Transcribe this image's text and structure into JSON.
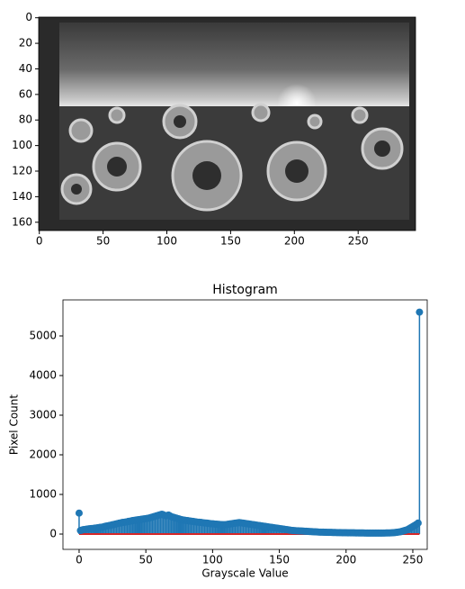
{
  "chart_data": [
    {
      "type": "image",
      "xlim": [
        -0.5,
        295
      ],
      "ylim": [
        166.5,
        -0.5
      ],
      "xticks": [
        0,
        50,
        100,
        150,
        200,
        250
      ],
      "yticks": [
        0,
        20,
        40,
        60,
        80,
        100,
        120,
        140,
        160
      ]
    },
    {
      "type": "stem",
      "title": "Histogram",
      "x_label": "Grayscale Value",
      "y_label": "Pixel Count",
      "color": "#1f77b4",
      "baseline_color": "#d62728",
      "xlim": [
        -12.1,
        260.8
      ],
      "ylim": [
        -386,
        5909
      ],
      "xticks": [
        0,
        50,
        100,
        150,
        200,
        250
      ],
      "yticks": [
        0,
        1000,
        2000,
        3000,
        4000,
        5000
      ],
      "x": [
        0,
        1,
        2,
        3,
        4,
        5,
        6,
        7,
        8,
        9,
        10,
        11,
        12,
        13,
        14,
        15,
        16,
        17,
        18,
        19,
        20,
        21,
        22,
        23,
        24,
        25,
        26,
        27,
        28,
        29,
        30,
        31,
        32,
        33,
        34,
        35,
        36,
        37,
        38,
        39,
        40,
        41,
        42,
        43,
        44,
        45,
        46,
        47,
        48,
        49,
        50,
        51,
        52,
        53,
        54,
        55,
        56,
        57,
        58,
        59,
        60,
        61,
        62,
        63,
        64,
        65,
        66,
        67,
        68,
        69,
        70,
        71,
        72,
        73,
        74,
        75,
        76,
        77,
        78,
        79,
        80,
        81,
        82,
        83,
        84,
        85,
        86,
        87,
        88,
        89,
        90,
        91,
        92,
        93,
        94,
        95,
        96,
        97,
        98,
        99,
        100,
        101,
        102,
        103,
        104,
        105,
        106,
        107,
        108,
        109,
        110,
        111,
        112,
        113,
        114,
        115,
        116,
        117,
        118,
        119,
        120,
        121,
        122,
        123,
        124,
        125,
        126,
        127,
        128,
        129,
        130,
        131,
        132,
        133,
        134,
        135,
        136,
        137,
        138,
        139,
        140,
        141,
        142,
        143,
        144,
        145,
        146,
        147,
        148,
        149,
        150,
        151,
        152,
        153,
        154,
        155,
        156,
        157,
        158,
        159,
        160,
        161,
        162,
        163,
        164,
        165,
        166,
        167,
        168,
        169,
        170,
        171,
        172,
        173,
        174,
        175,
        176,
        177,
        178,
        179,
        180,
        181,
        182,
        183,
        184,
        185,
        186,
        187,
        188,
        189,
        190,
        191,
        192,
        193,
        194,
        195,
        196,
        197,
        198,
        199,
        200,
        201,
        202,
        203,
        204,
        205,
        206,
        207,
        208,
        209,
        210,
        211,
        212,
        213,
        214,
        215,
        216,
        217,
        218,
        219,
        220,
        221,
        222,
        223,
        224,
        225,
        226,
        227,
        228,
        229,
        230,
        231,
        232,
        233,
        234,
        235,
        236,
        237,
        238,
        239,
        240,
        241,
        242,
        243,
        244,
        245,
        246,
        247,
        248,
        249,
        250,
        251,
        252,
        253,
        254,
        255
      ],
      "values": [
        530,
        90,
        100,
        110,
        115,
        120,
        125,
        130,
        135,
        140,
        140,
        145,
        150,
        155,
        160,
        165,
        170,
        175,
        180,
        190,
        200,
        205,
        210,
        220,
        225,
        235,
        240,
        250,
        260,
        265,
        275,
        280,
        290,
        295,
        300,
        305,
        310,
        320,
        325,
        330,
        340,
        345,
        350,
        355,
        360,
        365,
        370,
        375,
        380,
        385,
        390,
        395,
        400,
        410,
        420,
        430,
        440,
        450,
        460,
        470,
        480,
        490,
        500,
        490,
        470,
        460,
        470,
        480,
        460,
        440,
        430,
        420,
        410,
        400,
        390,
        380,
        370,
        360,
        355,
        350,
        345,
        340,
        335,
        330,
        325,
        320,
        315,
        310,
        305,
        300,
        300,
        295,
        290,
        285,
        280,
        280,
        275,
        270,
        265,
        260,
        260,
        255,
        250,
        250,
        245,
        245,
        240,
        240,
        235,
        235,
        240,
        245,
        250,
        255,
        260,
        265,
        270,
        275,
        280,
        285,
        290,
        285,
        280,
        275,
        270,
        265,
        260,
        255,
        250,
        245,
        240,
        235,
        230,
        225,
        220,
        215,
        210,
        205,
        200,
        195,
        190,
        185,
        180,
        175,
        170,
        165,
        160,
        155,
        150,
        145,
        140,
        135,
        130,
        125,
        120,
        115,
        110,
        105,
        100,
        95,
        90,
        88,
        86,
        84,
        82,
        80,
        78,
        76,
        74,
        72,
        70,
        68,
        66,
        64,
        62,
        60,
        58,
        56,
        54,
        52,
        50,
        50,
        48,
        48,
        46,
        46,
        44,
        44,
        42,
        42,
        40,
        40,
        40,
        38,
        38,
        36,
        36,
        35,
        35,
        34,
        34,
        33,
        33,
        32,
        32,
        31,
        31,
        30,
        30,
        30,
        29,
        29,
        28,
        28,
        27,
        27,
        26,
        26,
        25,
        25,
        25,
        25,
        25,
        25,
        25,
        25,
        26,
        26,
        27,
        27,
        28,
        28,
        30,
        30,
        32,
        34,
        36,
        40,
        45,
        50,
        55,
        60,
        70,
        80,
        90,
        100,
        110,
        130,
        150,
        170,
        190,
        210,
        230,
        250,
        280,
        5600
      ]
    }
  ]
}
